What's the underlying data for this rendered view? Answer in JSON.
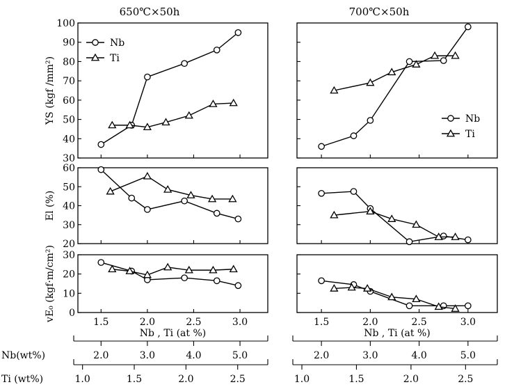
{
  "columns": [
    {
      "title": "650℃×50h"
    },
    {
      "title": "700℃×50h"
    }
  ],
  "chart_data": [
    {
      "type": "line",
      "panel": "YS-650",
      "ylabel": "YS (kgf /mm²)",
      "xlabel": "",
      "ylim": [
        30,
        100
      ],
      "xlim": [
        1.25,
        3.3
      ],
      "yticks": [
        "30",
        "40",
        "50",
        "60",
        "70",
        "80",
        "90",
        "100"
      ],
      "xticks": [],
      "legend": "upper-left",
      "series": [
        {
          "name": "Nb",
          "marker": "circle",
          "x": [
            1.5,
            1.83,
            2.0,
            2.4,
            2.75,
            2.98
          ],
          "y": [
            37,
            47,
            72,
            79,
            86,
            95
          ]
        },
        {
          "name": "Ti",
          "marker": "triangle",
          "x": [
            1.62,
            1.81,
            2.0,
            2.2,
            2.45,
            2.71,
            2.93
          ],
          "y": [
            47,
            47,
            46,
            48.5,
            52,
            58,
            58.5
          ]
        }
      ]
    },
    {
      "type": "line",
      "panel": "YS-700",
      "ylabel": "",
      "xlabel": "",
      "ylim": [
        30,
        100
      ],
      "xlim": [
        1.25,
        3.3
      ],
      "yticks": [],
      "xticks": [],
      "legend": "lower-right",
      "series": [
        {
          "name": "Nb",
          "marker": "circle",
          "x": [
            1.5,
            1.83,
            2.0,
            2.4,
            2.75,
            3.0
          ],
          "y": [
            36,
            41.5,
            49.5,
            80,
            80.5,
            98
          ]
        },
        {
          "name": "Ti",
          "marker": "triangle",
          "x": [
            1.63,
            2.0,
            2.22,
            2.47,
            2.66,
            2.87
          ],
          "y": [
            65,
            69,
            74.5,
            78.5,
            83,
            83
          ]
        }
      ]
    },
    {
      "type": "line",
      "panel": "El-650",
      "ylabel": "El (%)",
      "xlabel": "",
      "ylim": [
        20,
        60
      ],
      "xlim": [
        1.25,
        3.3
      ],
      "yticks": [
        "20",
        "30",
        "40",
        "50",
        "60"
      ],
      "xticks": [],
      "series": [
        {
          "name": "Nb",
          "marker": "circle",
          "x": [
            1.5,
            1.83,
            2.0,
            2.4,
            2.75,
            2.98
          ],
          "y": [
            59,
            44,
            38,
            42.5,
            36,
            33
          ]
        },
        {
          "name": "Ti",
          "marker": "triangle",
          "x": [
            1.6,
            2.0,
            2.22,
            2.47,
            2.7,
            2.92
          ],
          "y": [
            47.5,
            55.5,
            48.5,
            45.5,
            43.5,
            43.5
          ]
        }
      ]
    },
    {
      "type": "line",
      "panel": "El-700",
      "ylabel": "",
      "xlabel": "",
      "ylim": [
        20,
        60
      ],
      "xlim": [
        1.25,
        3.3
      ],
      "yticks": [],
      "xticks": [],
      "series": [
        {
          "name": "Nb",
          "marker": "circle",
          "x": [
            1.5,
            1.83,
            2.0,
            2.4,
            2.75,
            3.0
          ],
          "y": [
            46.5,
            47.5,
            38.5,
            21,
            24,
            22
          ]
        },
        {
          "name": "Ti",
          "marker": "triangle",
          "x": [
            1.63,
            2.0,
            2.22,
            2.47,
            2.7,
            2.87
          ],
          "y": [
            35,
            37,
            33,
            30,
            23.5,
            23.5
          ]
        }
      ]
    },
    {
      "type": "line",
      "panel": "vE0-650",
      "ylabel": "vE₀ (kgf·m/cm²)",
      "xlabel": "Nb , Ti (at %)",
      "ylim": [
        0,
        30
      ],
      "xlim": [
        1.25,
        3.3
      ],
      "yticks": [
        "0",
        "10",
        "20",
        "30"
      ],
      "xticks": [
        "1.5",
        "2.0",
        "2.5",
        "3.0"
      ],
      "series": [
        {
          "name": "Nb",
          "marker": "circle",
          "x": [
            1.5,
            1.83,
            2.0,
            2.4,
            2.75,
            2.98
          ],
          "y": [
            26,
            21.5,
            17,
            18,
            16.5,
            14
          ]
        },
        {
          "name": "Ti",
          "marker": "triangle",
          "x": [
            1.62,
            1.81,
            2.0,
            2.22,
            2.45,
            2.71,
            2.93
          ],
          "y": [
            22.5,
            21.5,
            19.5,
            23.5,
            22,
            22,
            22.5
          ]
        }
      ]
    },
    {
      "type": "line",
      "panel": "vE0-700",
      "ylabel": "",
      "xlabel": "Nb , Ti (at %)",
      "ylim": [
        0,
        30
      ],
      "xlim": [
        1.25,
        3.3
      ],
      "yticks": [],
      "xticks": [
        "1.5",
        "2.0",
        "2.5",
        "3.0"
      ],
      "series": [
        {
          "name": "Nb",
          "marker": "circle",
          "x": [
            1.5,
            1.83,
            2.0,
            2.4,
            2.75,
            3.0
          ],
          "y": [
            16.5,
            14.5,
            11,
            3.5,
            3.5,
            3.5
          ]
        },
        {
          "name": "Ti",
          "marker": "triangle",
          "x": [
            1.63,
            1.81,
            1.97,
            2.22,
            2.47,
            2.7,
            2.87
          ],
          "y": [
            12.5,
            13,
            12.5,
            8,
            7,
            3,
            2
          ]
        }
      ]
    }
  ],
  "secondary_axes": [
    {
      "label": "Nb(wt%)",
      "mapping": [
        [
          2.0,
          1.5
        ],
        [
          5.0,
          3.0
        ]
      ],
      "ticks": [
        [
          "2.0",
          "3.0",
          "4.0",
          "5.0"
        ],
        [
          "2.0",
          "3.0",
          "4.0",
          "5.0"
        ]
      ]
    },
    {
      "label": "Ti (wt%)",
      "mapping": [
        [
          1.0,
          1.3
        ],
        [
          2.5,
          2.975
        ]
      ],
      "ticks": [
        [
          "1.0",
          "1.5",
          "2.0",
          "2.5"
        ],
        [
          "1.0",
          "1.5",
          "2.0",
          "2.5"
        ]
      ]
    }
  ]
}
